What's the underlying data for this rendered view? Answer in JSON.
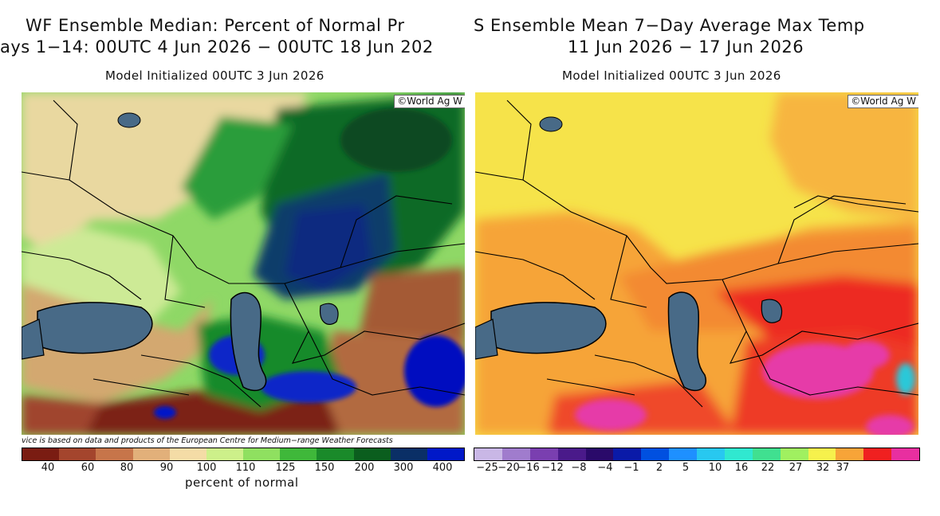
{
  "left_panel": {
    "title_line1": "WF Ensemble Median: Percent of Normal Pr",
    "title_line2": "ays 1−14: 00UTC 4 Jun 2026 − 00UTC 18 Jun 202",
    "subtitle": "Model Initialized 00UTC 3 Jun 2026",
    "credit": "©World Ag W",
    "disclaimer": "vice is based on data and products of the European Centre for Medium−range Weather Forecasts",
    "legend_ticks": [
      "40",
      "60",
      "80",
      "90",
      "100",
      "110",
      "125",
      "150",
      "200",
      "300",
      "400"
    ],
    "legend_colors": [
      "#7a1c12",
      "#a4452d",
      "#c7754a",
      "#e2b07a",
      "#f4dca6",
      "#cdf08a",
      "#8fe060",
      "#3fb83a",
      "#1a8a2a",
      "#0b5e1e",
      "#0a2f66",
      "#0018c8"
    ],
    "legend_unit": "percent of normal"
  },
  "right_panel": {
    "title_line1": "S Ensemble Mean 7−Day Average Max Temp",
    "title_line2": "11 Jun 2026 − 17 Jun 2026",
    "subtitle": "Model Initialized 00UTC 3 Jun 2026",
    "credit": "©World Ag W",
    "legend_ticks": [
      "−25",
      "−20",
      "−16",
      "−12",
      "−8",
      "−4",
      "−1",
      "2",
      "5",
      "10",
      "16",
      "22",
      "27",
      "32",
      "37"
    ],
    "legend_colors": [
      "#c9b7e6",
      "#a07ccd",
      "#7a3fb0",
      "#4a1a8a",
      "#2a0a6a",
      "#0a1aa8",
      "#0050e0",
      "#1e90ff",
      "#28c8f0",
      "#30e8d0",
      "#40e090",
      "#a0f060",
      "#f6f14c",
      "#f7a438",
      "#f02020",
      "#e82fa0"
    ]
  }
}
